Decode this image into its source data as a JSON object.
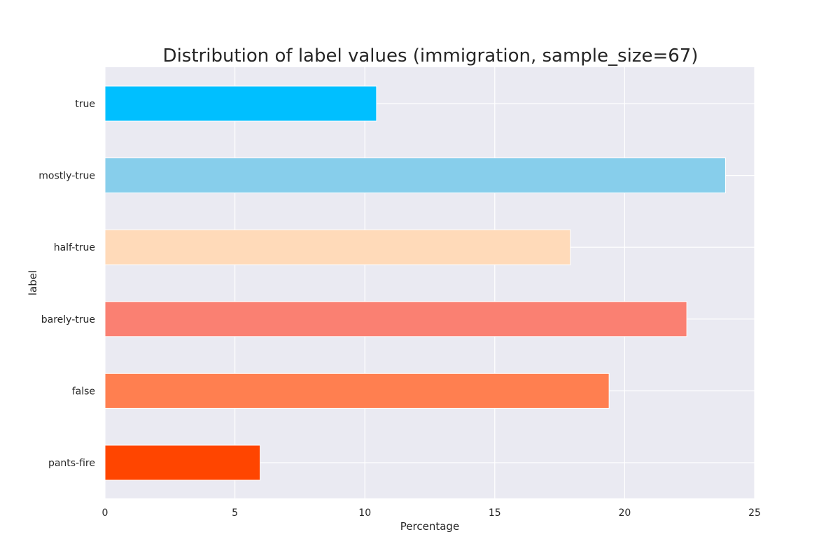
{
  "chart_data": {
    "type": "bar",
    "orientation": "horizontal",
    "title": "Distribution of label values (immigration, sample_size=67)",
    "xlabel": "Percentage",
    "ylabel": "label",
    "categories": [
      "true",
      "mostly-true",
      "half-true",
      "barely-true",
      "false",
      "pants-fire"
    ],
    "values": [
      10.45,
      23.88,
      17.91,
      22.39,
      19.4,
      5.97
    ],
    "colors": [
      "#00bfff",
      "#87ceeb",
      "#ffdab9",
      "#fa8072",
      "#ff7f50",
      "#ff4500"
    ],
    "xlim": [
      0,
      25
    ],
    "xticks": [
      0,
      5,
      10,
      15,
      20,
      25
    ],
    "grid": true,
    "background": "#eaeaf2",
    "grid_color": "#ffffff"
  }
}
